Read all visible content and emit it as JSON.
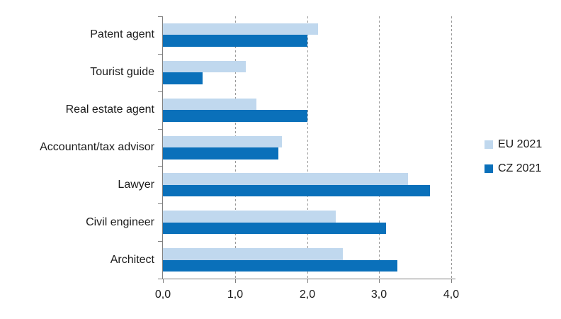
{
  "chart_data": {
    "type": "bar",
    "orientation": "horizontal",
    "title": "",
    "xlabel": "",
    "ylabel": "",
    "categories": [
      "Patent agent",
      "Tourist guide",
      "Real estate agent",
      "Accountant/tax advisor",
      "Lawyer",
      "Civil engineer",
      "Architect"
    ],
    "series": [
      {
        "name": "EU 2021",
        "color": "#C0D8EE",
        "values": [
          2.15,
          1.15,
          1.3,
          1.65,
          3.4,
          2.4,
          2.5
        ]
      },
      {
        "name": "CZ 2021",
        "color": "#0A70BA",
        "values": [
          2.0,
          0.55,
          2.0,
          1.6,
          3.7,
          3.1,
          3.25
        ]
      }
    ],
    "xlim": [
      0,
      4
    ],
    "xtick_values": [
      0,
      1,
      2,
      3,
      4
    ],
    "xtick_labels": [
      "0,0",
      "1,0",
      "2,0",
      "3,0",
      "4,0"
    ],
    "grid": "vertical-dashed",
    "legend_position": "right"
  },
  "colors": {
    "background": "#FFFFFF",
    "axis": "#7F7F7F",
    "gridline": "#999999",
    "text": "#1A1A1A"
  }
}
